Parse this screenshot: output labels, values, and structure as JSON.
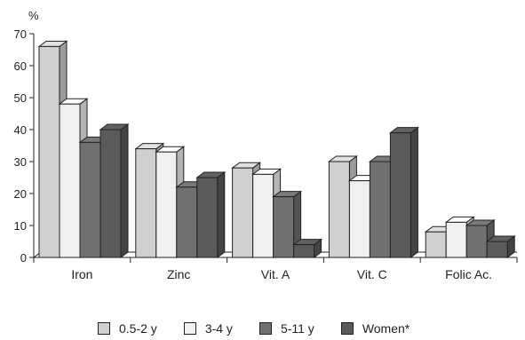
{
  "chart_data": {
    "type": "bar",
    "title": "",
    "xlabel": "",
    "ylabel": "%",
    "ylim": [
      0,
      70
    ],
    "yticks": [
      0,
      10,
      20,
      30,
      40,
      50,
      60,
      70
    ],
    "categories": [
      "Iron",
      "Zinc",
      "Vit. A",
      "Vit. C",
      "Folic Ac."
    ],
    "series": [
      {
        "name": "0.5-2 y",
        "values": [
          66,
          34,
          28,
          30,
          8
        ],
        "color": "#d0d0d0"
      },
      {
        "name": "3-4 y",
        "values": [
          48,
          33,
          26,
          24,
          11
        ],
        "color": "#f0f0f0"
      },
      {
        "name": "5-11 y",
        "values": [
          36,
          22,
          19,
          30,
          10
        ],
        "color": "#707070"
      },
      {
        "name": "Women*",
        "values": [
          40,
          25,
          4,
          39,
          5
        ],
        "color": "#5a5a5a"
      }
    ],
    "grid": false,
    "legend_position": "bottom",
    "style": "3d"
  }
}
